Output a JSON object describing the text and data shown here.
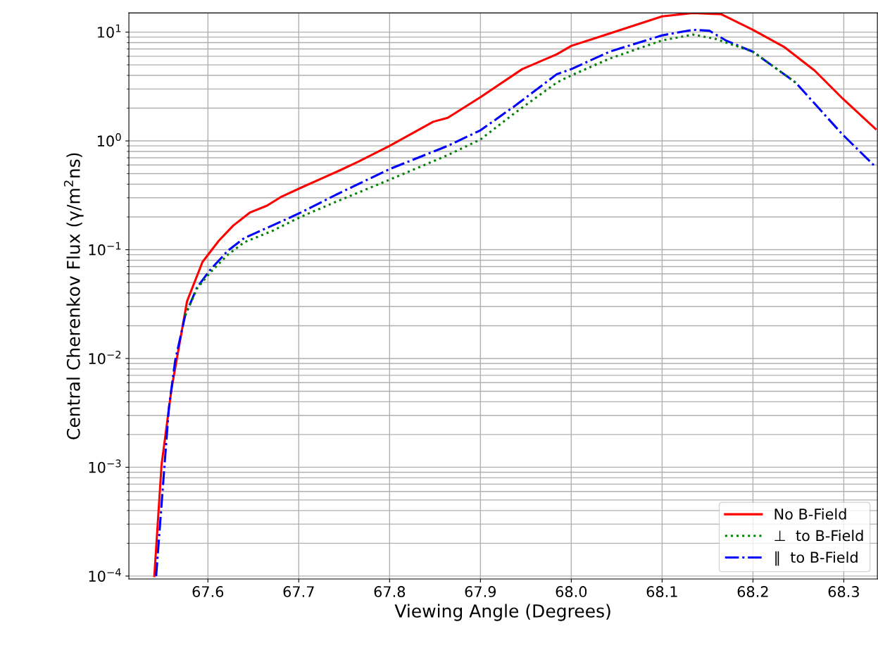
{
  "chart_data": {
    "type": "line",
    "xlabel": "Viewing Angle (Degrees)",
    "ylabel": "Central Cherenkov Flux (γ/m$^{2}$ns)",
    "log": "y",
    "grid": true,
    "legend": "lower right",
    "xlim": [
      67.513,
      68.337
    ],
    "ylim": [
      9.4e-05,
      15.0
    ],
    "xticks": [
      67.6,
      67.7,
      67.8,
      67.9,
      {
        "value": 68.0,
        "label": "68.0"
      },
      68.1,
      68.2,
      68.3
    ],
    "yticks": [
      {
        "value": 0.0001,
        "label": "10$^{−4}$"
      },
      {
        "value": 0.001,
        "label": "10$^{−3}$"
      },
      {
        "value": 0.01,
        "label": "10$^{−2}$"
      },
      {
        "value": 0.1,
        "label": "10$^{−1}$"
      },
      {
        "value": 1,
        "label": "10$^{0}$"
      },
      {
        "value": 10,
        "label": "10$^{1}$"
      }
    ],
    "series": [
      {
        "name": "No B-Field",
        "color": "#ff0000",
        "line_style": "solid",
        "x": [
          67.541,
          67.549,
          67.56,
          67.577,
          67.594,
          67.612,
          67.628,
          67.646,
          67.665,
          67.68,
          67.702,
          67.745,
          67.765,
          67.8,
          67.848,
          67.864,
          67.9,
          67.946,
          67.984,
          68.0,
          68.031,
          68.1,
          68.134,
          68.165,
          68.2,
          68.235,
          68.268,
          68.299,
          68.335
        ],
        "values": [
          0.0001,
          0.00106,
          0.0053,
          0.0335,
          0.077,
          0.121,
          0.167,
          0.219,
          0.254,
          0.304,
          0.37,
          0.535,
          0.64,
          0.9,
          1.5,
          1.63,
          2.52,
          4.57,
          6.25,
          7.47,
          9.06,
          13.96,
          15.0,
          14.6,
          10.5,
          7.25,
          4.43,
          2.44,
          1.29
        ]
      },
      {
        "name": "⊥  to B-Field",
        "color": "#008000",
        "line_style": "dotted",
        "x": [
          67.575,
          67.588,
          67.602,
          67.622,
          67.64,
          67.671,
          67.702,
          67.742,
          67.8,
          67.864,
          67.9,
          67.938,
          67.984,
          68.0,
          68.042,
          68.1,
          68.134,
          68.158,
          68.2,
          68.247
        ],
        "values": [
          0.0249,
          0.044,
          0.061,
          0.09,
          0.117,
          0.149,
          0.2,
          0.278,
          0.44,
          0.74,
          1.03,
          1.81,
          3.44,
          4.0,
          5.7,
          8.4,
          9.5,
          8.7,
          6.6,
          3.44
        ]
      },
      {
        "name": "∥  to B-Field",
        "color": "#0000ff",
        "line_style": "dashdot",
        "x": [
          67.543,
          67.557,
          67.564,
          67.575,
          67.588,
          67.602,
          67.622,
          67.64,
          67.671,
          67.702,
          67.742,
          67.8,
          67.864,
          67.9,
          67.938,
          67.984,
          68.0,
          68.042,
          68.1,
          68.134,
          68.152,
          68.17,
          68.2,
          68.247,
          68.298,
          68.335
        ],
        "values": [
          0.0001,
          0.0035,
          0.0096,
          0.0249,
          0.045,
          0.0645,
          0.098,
          0.128,
          0.167,
          0.219,
          0.323,
          0.551,
          0.9,
          1.25,
          2.1,
          4.1,
          4.57,
          6.6,
          9.34,
          10.5,
          10.3,
          8.4,
          6.6,
          3.44,
          1.16,
          0.576
        ]
      }
    ]
  }
}
